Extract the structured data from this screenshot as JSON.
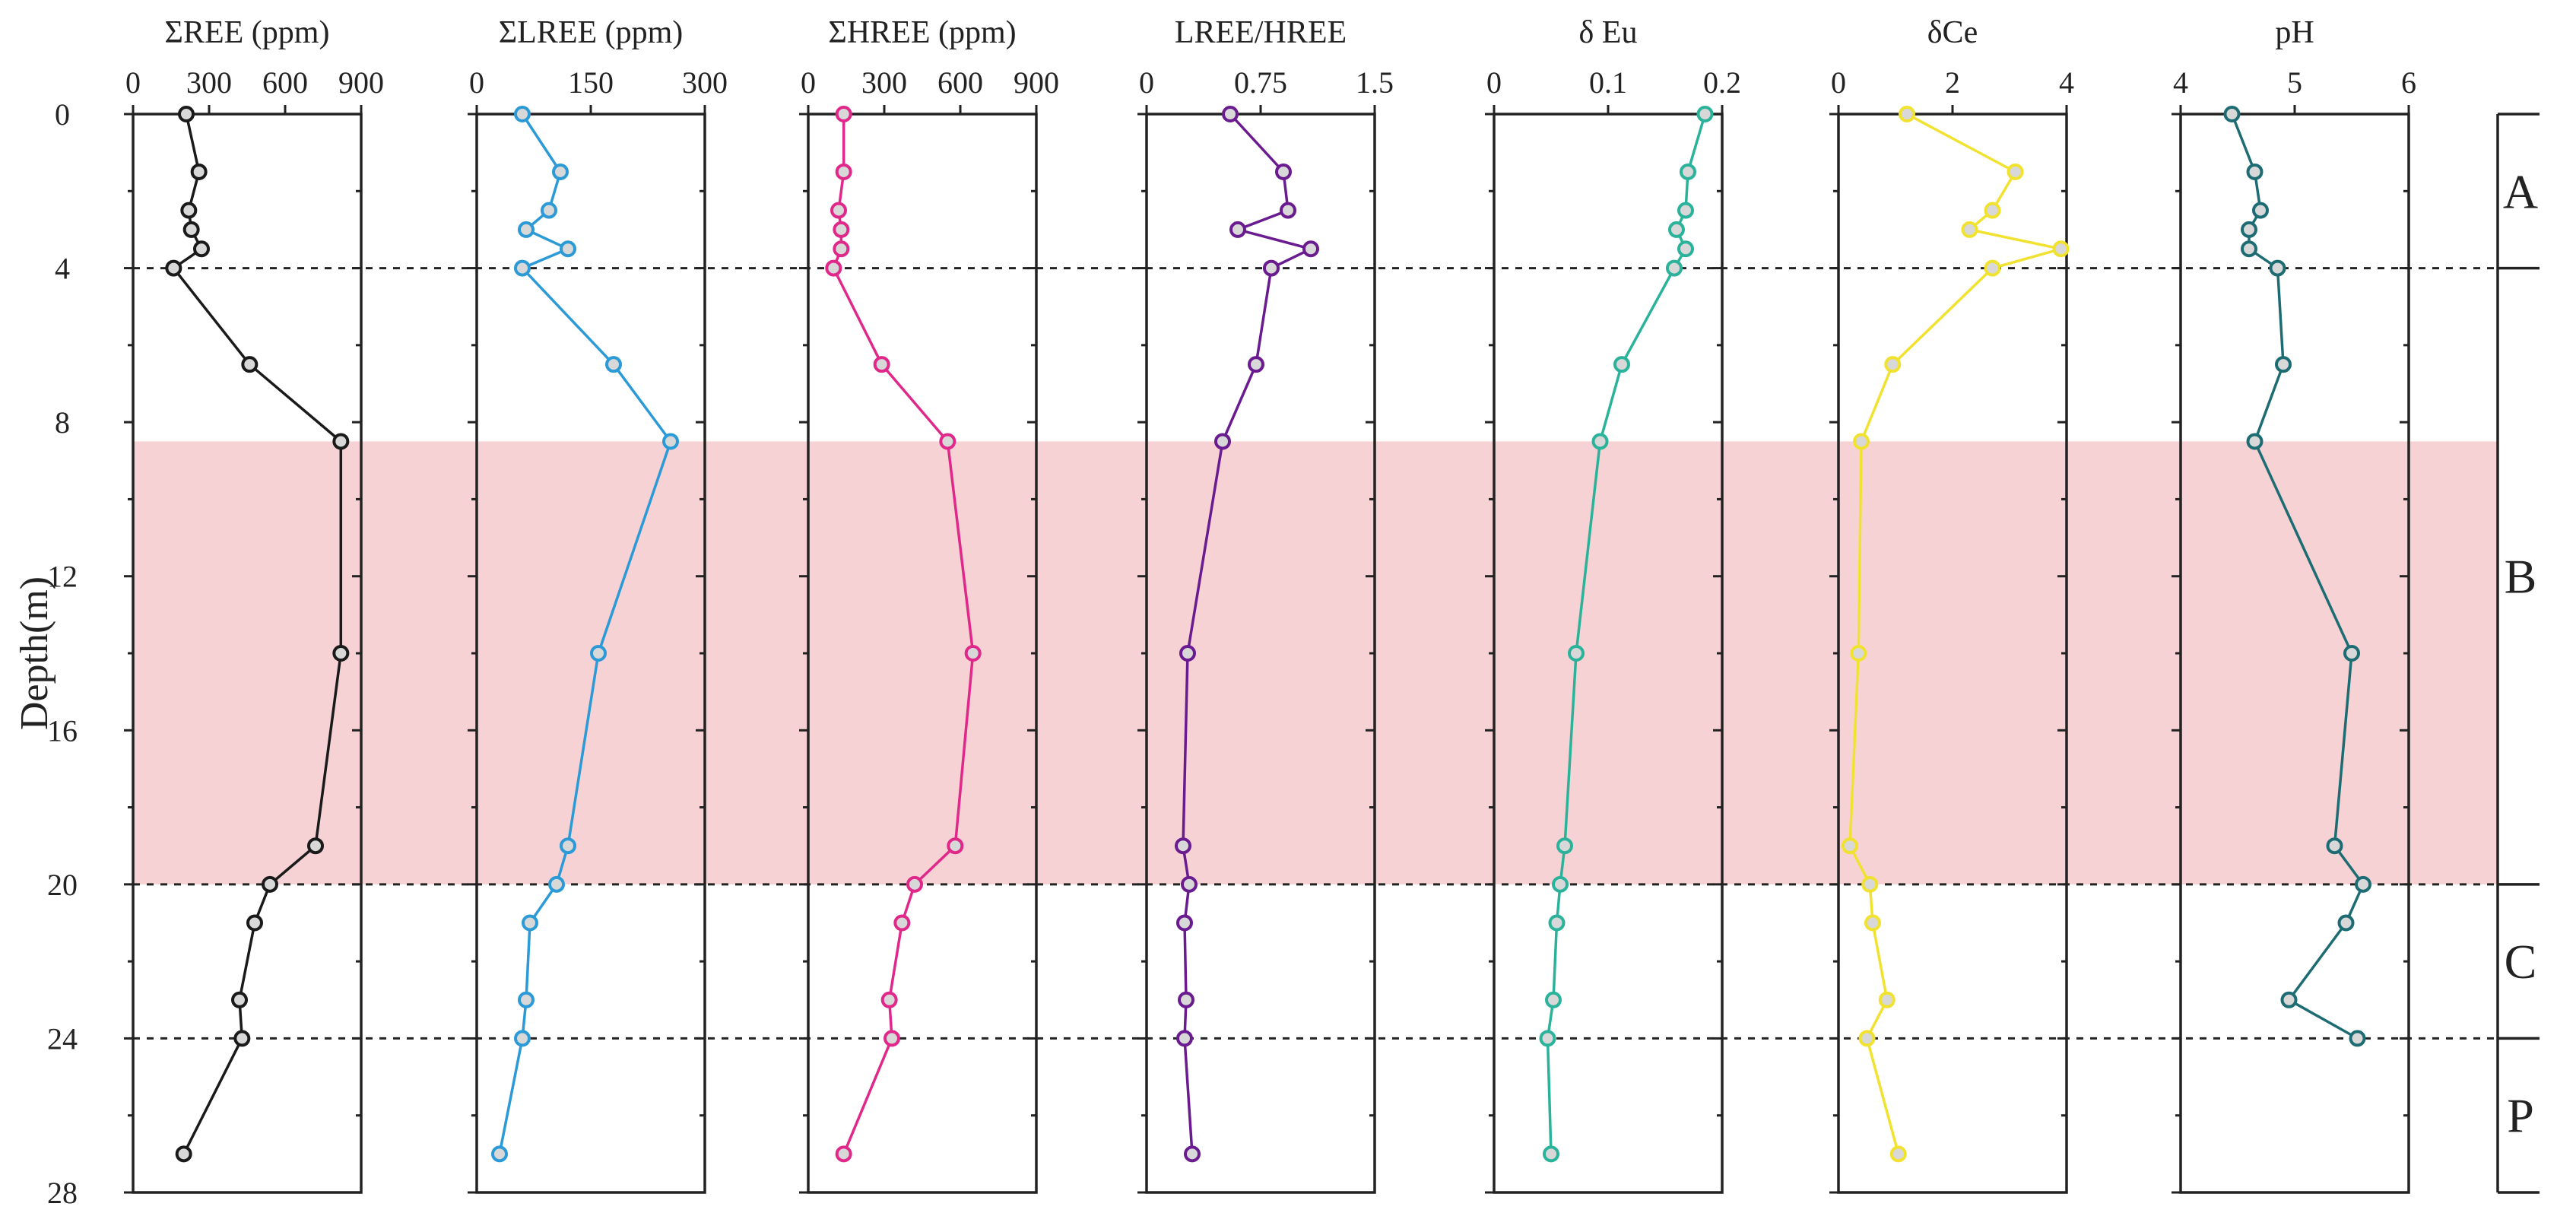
{
  "chart_data": {
    "type": "line",
    "ylabel": "Depth(m)",
    "ylim": [
      0,
      28
    ],
    "yticks": [
      0,
      4,
      8,
      12,
      16,
      20,
      24,
      28
    ],
    "depths": [
      0,
      1.5,
      2.5,
      3,
      3.5,
      4,
      6.5,
      8.5,
      14,
      19,
      20,
      21,
      23,
      24,
      27
    ],
    "highlight_band": {
      "from": 8.5,
      "to": 20,
      "color": "#f6d2d4"
    },
    "zone_boundaries": [
      4,
      20,
      24
    ],
    "zones": [
      {
        "label": "A",
        "from": 0,
        "to": 4
      },
      {
        "label": "B",
        "from": 4,
        "to": 20
      },
      {
        "label": "C",
        "from": 20,
        "to": 24
      },
      {
        "label": "P",
        "from": 24,
        "to": 28
      }
    ],
    "series": [
      {
        "name": "ΣREE (ppm)",
        "color": "#1a1a1a",
        "xlim": [
          0,
          900
        ],
        "ticks": [
          "0",
          "300",
          "600",
          "900"
        ],
        "values": [
          210,
          260,
          220,
          230,
          270,
          160,
          460,
          820,
          820,
          720,
          540,
          480,
          420,
          430,
          200
        ]
      },
      {
        "name": "ΣLREE (ppm)",
        "color": "#2b9ad6",
        "xlim": [
          0,
          300
        ],
        "ticks": [
          "0",
          "150",
          "300"
        ],
        "values": [
          60,
          110,
          95,
          65,
          120,
          60,
          180,
          255,
          160,
          120,
          105,
          70,
          65,
          60,
          30
        ]
      },
      {
        "name": "ΣHREE (ppm)",
        "color": "#e0288a",
        "xlim": [
          0,
          900
        ],
        "ticks": [
          "0",
          "300",
          "600",
          "900"
        ],
        "values": [
          140,
          140,
          120,
          130,
          130,
          100,
          290,
          550,
          650,
          580,
          420,
          370,
          320,
          330,
          140
        ]
      },
      {
        "name": "LREE/HREE",
        "color": "#6a1b8f",
        "xlim": [
          0,
          1.5
        ],
        "ticks": [
          "0",
          "0.75",
          "1.5"
        ],
        "values": [
          0.55,
          0.9,
          0.93,
          0.6,
          1.08,
          0.82,
          0.72,
          0.5,
          0.27,
          0.24,
          0.28,
          0.25,
          0.26,
          0.25,
          0.3
        ]
      },
      {
        "name": "δ Eu",
        "color": "#2ab39a",
        "xlim": [
          0,
          0.2
        ],
        "ticks": [
          "0",
          "0.1",
          "0.2"
        ],
        "values": [
          0.185,
          0.17,
          0.168,
          0.16,
          0.168,
          0.158,
          0.112,
          0.093,
          0.072,
          0.062,
          0.058,
          0.055,
          0.052,
          0.047,
          0.05
        ]
      },
      {
        "name": "δCe",
        "color": "#f2e230",
        "xlim": [
          0,
          4
        ],
        "ticks": [
          "0",
          "2",
          "4"
        ],
        "values": [
          1.2,
          3.1,
          2.7,
          2.3,
          3.9,
          2.7,
          0.95,
          0.4,
          0.35,
          0.2,
          0.55,
          0.6,
          0.85,
          0.5,
          1.05
        ]
      },
      {
        "name": "pH",
        "color": "#1d6c73",
        "xlim": [
          4,
          6
        ],
        "ticks": [
          "4",
          "5",
          "6"
        ],
        "values": [
          4.45,
          4.65,
          4.7,
          4.6,
          4.6,
          4.85,
          4.9,
          4.65,
          5.5,
          5.35,
          5.6,
          5.45,
          4.95,
          5.55,
          null
        ]
      }
    ]
  }
}
